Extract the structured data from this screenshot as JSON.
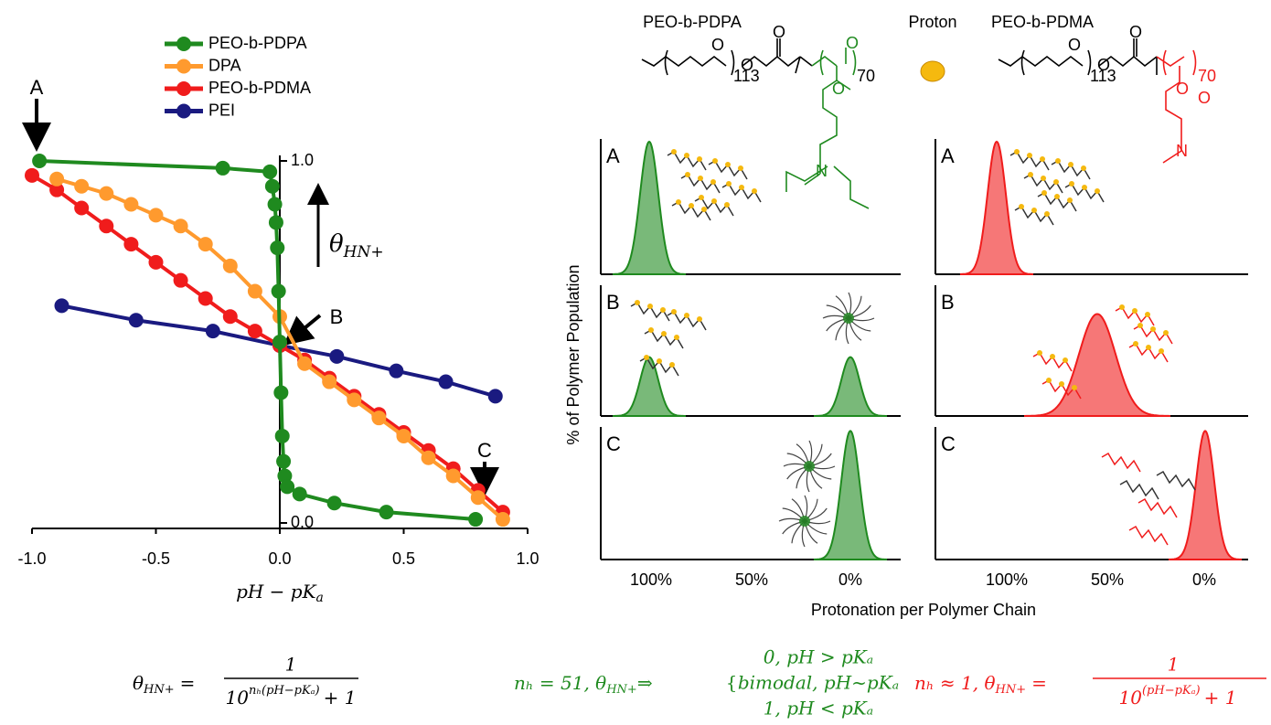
{
  "chart_data": {
    "type": "line",
    "xlim": [
      -1.0,
      1.0
    ],
    "ylim": [
      0,
      1.0
    ],
    "xticks": [
      {
        "value": -1,
        "label": "-1.0"
      },
      {
        "value": -0.5,
        "label": "-0.5"
      },
      {
        "value": 0,
        "label": "0.0"
      },
      {
        "value": 0.5,
        "label": "0.5"
      },
      {
        "value": 1,
        "label": "1.0"
      }
    ],
    "yticks": [
      {
        "value": 0,
        "label": "0.0"
      },
      {
        "value": 1,
        "label": "1.0"
      }
    ],
    "xlabel": {
      "main": "pH − pK",
      "sub": "a"
    },
    "ylabel": {
      "main": "θ",
      "sub": "HN+"
    },
    "annotations": [
      "A",
      "B",
      "C"
    ],
    "legend": "upper-left",
    "series": [
      {
        "name": "PEO-b-PDPA",
        "color": "#1f8a1f",
        "x": [
          -0.97,
          -0.23,
          -0.04,
          -0.03,
          -0.02,
          -0.015,
          -0.01,
          -0.005,
          0,
          0.005,
          0.01,
          0.015,
          0.02,
          0.03,
          0.08,
          0.22,
          0.43,
          0.79
        ],
        "values": [
          1.0,
          0.98,
          0.97,
          0.93,
          0.88,
          0.83,
          0.76,
          0.64,
          0.5,
          0.36,
          0.24,
          0.17,
          0.13,
          0.1,
          0.08,
          0.055,
          0.03,
          0.01
        ]
      },
      {
        "name": "DPA",
        "color": "#ff9a2e",
        "x": [
          -0.9,
          -0.8,
          -0.7,
          -0.6,
          -0.5,
          -0.4,
          -0.3,
          -0.2,
          -0.1,
          0,
          0.1,
          0.2,
          0.3,
          0.4,
          0.5,
          0.6,
          0.7,
          0.8,
          0.9
        ],
        "values": [
          0.95,
          0.93,
          0.91,
          0.88,
          0.85,
          0.82,
          0.77,
          0.71,
          0.64,
          0.57,
          0.44,
          0.39,
          0.34,
          0.29,
          0.24,
          0.18,
          0.13,
          0.07,
          0.01
        ]
      },
      {
        "name": "PEO-b-PDMA",
        "color": "#f01c1c",
        "x": [
          -1.0,
          -0.9,
          -0.8,
          -0.7,
          -0.6,
          -0.5,
          -0.4,
          -0.3,
          -0.2,
          -0.1,
          0,
          0.1,
          0.2,
          0.3,
          0.4,
          0.5,
          0.6,
          0.7,
          0.8,
          0.9
        ],
        "values": [
          0.96,
          0.92,
          0.87,
          0.82,
          0.77,
          0.72,
          0.67,
          0.62,
          0.57,
          0.53,
          0.49,
          0.45,
          0.4,
          0.35,
          0.3,
          0.25,
          0.2,
          0.15,
          0.09,
          0.03
        ]
      },
      {
        "name": "PEI",
        "color": "#1a1a80",
        "x": [
          -0.88,
          -0.58,
          -0.27,
          0,
          0.23,
          0.47,
          0.67,
          0.87
        ],
        "values": [
          0.6,
          0.56,
          0.53,
          0.49,
          0.46,
          0.42,
          0.39,
          0.35
        ]
      }
    ]
  },
  "distributions": {
    "ylabel": "% of Polymer Population",
    "xlabel": "Protonation per Polymer Chain",
    "xticks": [
      "100%",
      "50%",
      "0%"
    ],
    "proton": "Proton",
    "columns": [
      {
        "title": "PEO-b-PDPA",
        "color": "#1f8a1f",
        "panels": [
          "A",
          "B",
          "C"
        ]
      },
      {
        "title": "PEO-b-PDMA",
        "color": "#f01c1c",
        "panels": [
          "A",
          "B",
          "C"
        ]
      }
    ]
  },
  "structure": {
    "oxygen": "O",
    "n_peo": "113",
    "n_block": "70",
    "nitrogen": "N"
  },
  "equations": {
    "general": {
      "lhs": "θ",
      "lhs_sub": "HN+",
      "equals": "=",
      "numerator": "1",
      "base": "10",
      "exponent": "nₕ(pH−pKₐ)",
      "tail": "+ 1"
    },
    "pdpa": {
      "text": "nₕ = 51,  θ",
      "sub": "HN+",
      "arrow": "⇒",
      "cases": [
        "0, pH > pKₐ",
        "bimodal, pH~pKₐ",
        "1, pH < pKₐ"
      ]
    },
    "pdma": {
      "text": "nₕ ≈ 1,  θ",
      "sub": "HN+",
      "equals": "=",
      "numerator": "1",
      "base": "10",
      "exponent": "(pH−pKₐ)",
      "tail": "+ 1"
    }
  }
}
